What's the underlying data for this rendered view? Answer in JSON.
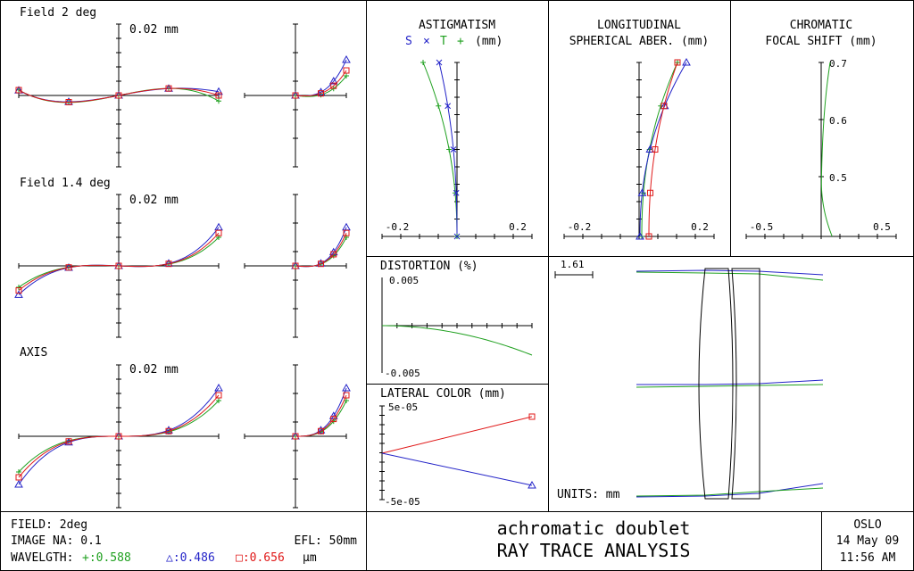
{
  "fan_panels": {
    "scale_label": "0.02 mm",
    "fields": [
      {
        "label": "Field 2 deg"
      },
      {
        "label": "Field 1.4 deg"
      },
      {
        "label": "AXIS"
      }
    ]
  },
  "astigmatism": {
    "title": "ASTIGMATISM",
    "legend": {
      "s": "S",
      "x": "×",
      "t": "T",
      "plus": "+",
      "units": "(mm)"
    },
    "xmin_label": "-0.2",
    "xmax_label": "0.2"
  },
  "spherical": {
    "title1": "LONGITUDINAL",
    "title2": "SPHERICAL ABER. (mm)",
    "xmin_label": "-0.2",
    "xmax_label": "0.2"
  },
  "chromatic": {
    "title1": "CHROMATIC",
    "title2": "FOCAL SHIFT (mm)",
    "y_labels": [
      "0.7",
      "0.6",
      "0.5"
    ],
    "xmin_label": "-0.5",
    "xmax_label": "0.5"
  },
  "distortion": {
    "title": "DISTORTION (%)",
    "ymax_label": "0.005",
    "ymin_label": "-0.005"
  },
  "lateral_color": {
    "title": "LATERAL COLOR (mm)",
    "ymax_label": "5e-05",
    "ymin_label": "-5e-05"
  },
  "layout_view": {
    "scale_label": "1.61",
    "units_label": "UNITS: mm"
  },
  "footer": {
    "field": "FIELD: 2deg",
    "image_na": "IMAGE NA: 0.1",
    "efl": "EFL: 50mm",
    "wavelength_label": "WAVELGTH:",
    "wl_green": "+:0.588",
    "wl_blue": "△:0.486",
    "wl_red": "□:0.656",
    "wl_unit": "μm",
    "title1": "achromatic doublet",
    "title2": "RAY TRACE ANALYSIS",
    "program": "OSLO",
    "date": "14 May 09",
    "time": "11:56 AM"
  },
  "colors": {
    "green": "#1fa01f",
    "blue": "#2323c8",
    "red": "#e01818"
  }
}
